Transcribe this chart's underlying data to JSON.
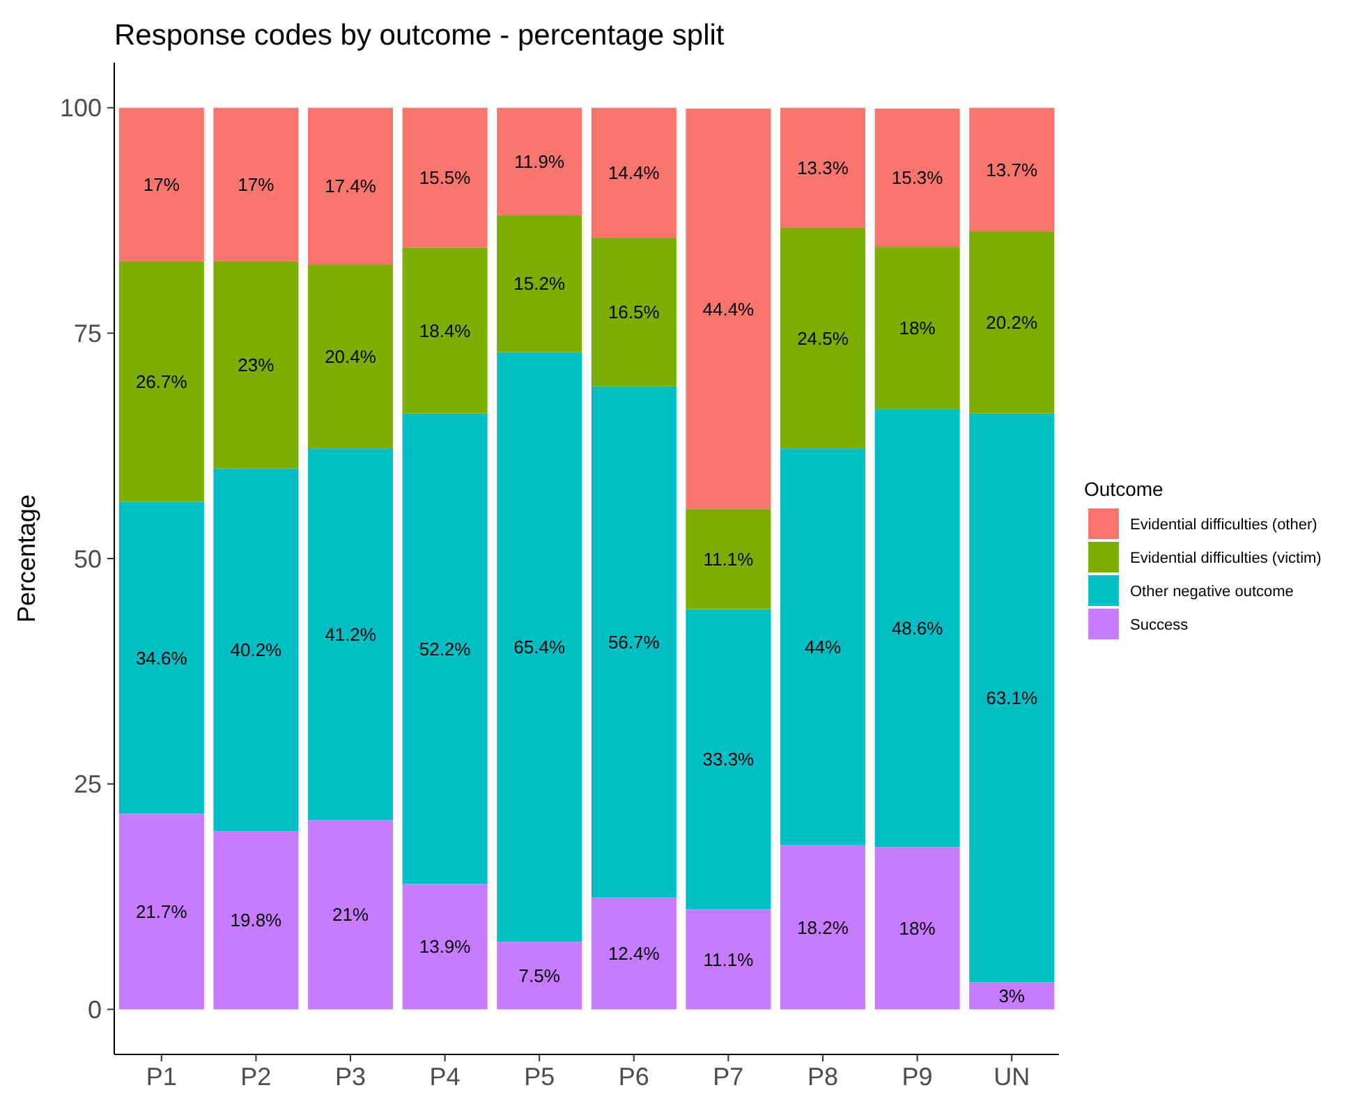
{
  "chart_data": {
    "type": "bar",
    "title": "Response codes by outcome - percentage split",
    "ylabel": "Percentage",
    "legend_title": "Outcome",
    "legend": "right",
    "stacked": true,
    "grid": false,
    "categories": [
      "P1",
      "P2",
      "P3",
      "P4",
      "P5",
      "P6",
      "P7",
      "P8",
      "P9",
      "UN"
    ],
    "ylim": [
      -5,
      105
    ],
    "yticks": [
      0,
      25,
      50,
      75,
      100
    ],
    "series": [
      {
        "name": "Success",
        "color": "#c77cff",
        "values": [
          21.7,
          19.8,
          21,
          13.9,
          7.5,
          12.4,
          11.1,
          18.2,
          18,
          3
        ],
        "value_labels": [
          "21.7%",
          "19.8%",
          "21%",
          "13.9%",
          "7.5%",
          "12.4%",
          "11.1%",
          "18.2%",
          "18%",
          "3%"
        ]
      },
      {
        "name": "Other negative outcome",
        "color": "#00bfc4",
        "values": [
          34.6,
          40.2,
          41.2,
          52.2,
          65.4,
          56.7,
          33.3,
          44,
          48.6,
          63.1
        ],
        "value_labels": [
          "34.6%",
          "40.2%",
          "41.2%",
          "52.2%",
          "65.4%",
          "56.7%",
          "33.3%",
          "44%",
          "48.6%",
          "63.1%"
        ]
      },
      {
        "name": "Evidential difficulties (victim)",
        "color": "#7cae00",
        "values": [
          26.7,
          23,
          20.4,
          18.4,
          15.2,
          16.5,
          11.1,
          24.5,
          18,
          20.2
        ],
        "value_labels": [
          "26.7%",
          "23%",
          "20.4%",
          "18.4%",
          "15.2%",
          "16.5%",
          "11.1%",
          "24.5%",
          "18%",
          "20.2%"
        ]
      },
      {
        "name": "Evidential difficulties (other)",
        "color": "#f8766d",
        "values": [
          17,
          17,
          17.4,
          15.5,
          11.9,
          14.4,
          44.4,
          13.3,
          15.3,
          13.7
        ],
        "value_labels": [
          "17%",
          "17%",
          "17.4%",
          "15.5%",
          "11.9%",
          "14.4%",
          "44.4%",
          "13.3%",
          "15.3%",
          "13.7%"
        ]
      }
    ]
  }
}
